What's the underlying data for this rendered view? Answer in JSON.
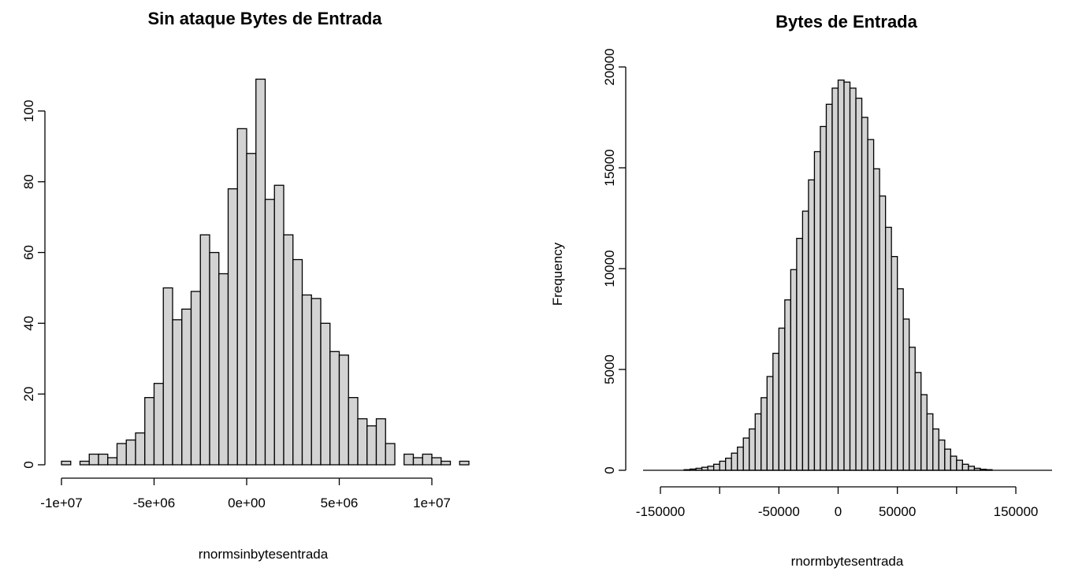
{
  "chart_data": [
    {
      "type": "bar",
      "title": "Sin ataque Bytes de Entrada",
      "xlabel": "rnormsinbytesentrada",
      "ylabel": "",
      "bin_start": -10000000,
      "bin_width": 500000,
      "values": [
        1,
        0,
        1,
        3,
        3,
        2,
        6,
        7,
        9,
        19,
        23,
        50,
        41,
        44,
        49,
        65,
        60,
        54,
        78,
        95,
        88,
        109,
        75,
        79,
        65,
        58,
        48,
        47,
        40,
        32,
        31,
        19,
        13,
        11,
        13,
        6,
        0,
        3,
        2,
        3,
        2,
        1,
        0,
        1
      ],
      "xlim": [
        -10000000,
        12000000
      ],
      "ylim": [
        0,
        110
      ],
      "xticks": [
        -10000000,
        -5000000,
        0,
        5000000,
        10000000
      ],
      "xtick_labels": [
        "-1e+07",
        "-5e+06",
        "0e+00",
        "5e+06",
        "1e+07"
      ],
      "yticks": [
        0,
        20,
        40,
        60,
        80,
        100
      ],
      "ytick_labels": [
        "0",
        "20",
        "40",
        "60",
        "80",
        "100"
      ]
    },
    {
      "type": "bar",
      "title": "Bytes de Entrada",
      "xlabel": "rnormbytesentrada",
      "ylabel": "Frequency",
      "bin_start": -130000,
      "bin_width": 5000,
      "values": [
        30,
        60,
        100,
        150,
        200,
        300,
        450,
        600,
        850,
        1150,
        1600,
        2050,
        2800,
        3600,
        4650,
        5800,
        7050,
        8450,
        9950,
        11500,
        12850,
        14400,
        15800,
        17050,
        18150,
        18950,
        19350,
        19250,
        18950,
        18450,
        17500,
        16400,
        14950,
        13600,
        12050,
        10600,
        9000,
        7500,
        6100,
        4850,
        3750,
        2800,
        2050,
        1500,
        1050,
        700,
        500,
        300,
        200,
        100,
        50,
        30
      ]
    },
    {
      "xlim": [
        -150000,
        150000
      ],
      "ylim": [
        0,
        20000
      ],
      "xticks": [
        -150000,
        -50000,
        0,
        50000,
        150000
      ],
      "xtick_labels": [
        "-150000",
        "-50000",
        "0",
        "50000",
        "150000"
      ],
      "minor_xticks": [
        -100000,
        100000
      ],
      "yticks": [
        0,
        5000,
        10000,
        15000,
        20000
      ],
      "ytick_labels": [
        "0",
        "5000",
        "10000",
        "15000",
        "20000"
      ]
    }
  ]
}
